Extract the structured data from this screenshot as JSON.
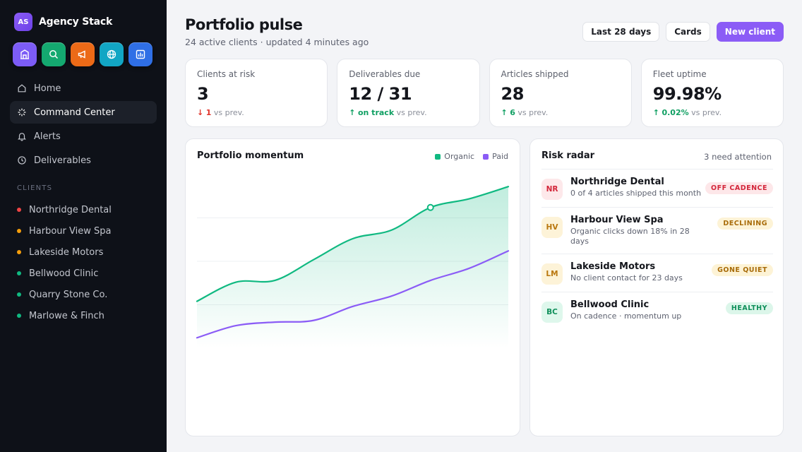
{
  "brand": {
    "initials": "AS",
    "name": "Agency Stack"
  },
  "apps": [
    {
      "icon": "building-icon",
      "color": "#7c5cf6"
    },
    {
      "icon": "search-icon",
      "color": "#14a970"
    },
    {
      "icon": "megaphone-icon",
      "color": "#ec6a17"
    },
    {
      "icon": "globe-icon",
      "color": "#12a6c4"
    },
    {
      "icon": "bar-chart-icon",
      "color": "#2f6fe6"
    }
  ],
  "nav": [
    {
      "label": "Home",
      "icon": "home-icon"
    },
    {
      "label": "Command Center",
      "icon": "sparkle-icon",
      "active": true
    },
    {
      "label": "Alerts",
      "icon": "bell-icon"
    },
    {
      "label": "Deliverables",
      "icon": "clock-icon"
    }
  ],
  "clients_label": "CLIENTS",
  "clients": [
    {
      "name": "Northridge Dental",
      "color": "#ef4444"
    },
    {
      "name": "Harbour View Spa",
      "color": "#f59e0b"
    },
    {
      "name": "Lakeside Motors",
      "color": "#f59e0b"
    },
    {
      "name": "Bellwood Clinic",
      "color": "#10b981"
    },
    {
      "name": "Quarry Stone Co.",
      "color": "#10b981"
    },
    {
      "name": "Marlowe & Finch",
      "color": "#10b981"
    }
  ],
  "header": {
    "title": "Portfolio pulse",
    "subtitle": "24 active clients · updated 4 minutes ago",
    "range_button": "Last 28 days",
    "view_button": "Cards",
    "primary_button": "New client"
  },
  "stats": [
    {
      "label": "Clients at risk",
      "value": "3",
      "delta_arrow": "↓",
      "delta": "1",
      "delta_suffix": "vs prev.",
      "trend": "down"
    },
    {
      "label": "Deliverables due",
      "value": "12 / 31",
      "delta_arrow": "↑",
      "delta": "on track",
      "delta_suffix": "vs prev.",
      "trend": "up"
    },
    {
      "label": "Articles shipped",
      "value": "28",
      "delta_arrow": "↑",
      "delta": "6",
      "delta_suffix": "vs prev.",
      "trend": "up"
    },
    {
      "label": "Fleet uptime",
      "value": "99.98%",
      "delta_arrow": "↑",
      "delta": "0.02%",
      "delta_suffix": "vs prev.",
      "trend": "up"
    }
  ],
  "momentum": {
    "title": "Portfolio momentum",
    "legend": [
      {
        "name": "Organic",
        "color": "#10b981"
      },
      {
        "name": "Paid",
        "color": "#8b5cf6"
      }
    ]
  },
  "chart_data": {
    "type": "area",
    "title": "Portfolio momentum",
    "xlabel": "",
    "ylabel": "",
    "ylim": [
      0,
      100
    ],
    "grid": true,
    "legend_position": "top-right",
    "x": [
      0,
      1,
      2,
      3,
      4,
      5,
      6,
      7,
      8
    ],
    "series": [
      {
        "name": "Organic",
        "color": "#10b981",
        "values": [
          27,
          38,
          39,
          51,
          63,
          68,
          81,
          86,
          93
        ],
        "highlight_index": 6
      },
      {
        "name": "Paid",
        "color": "#8b5cf6",
        "values": [
          6,
          13,
          15,
          16,
          24,
          30,
          39,
          46,
          56
        ]
      }
    ]
  },
  "risk": {
    "title": "Risk radar",
    "meta": "3 need attention",
    "items": [
      {
        "initials": "NR",
        "name": "Northridge Dental",
        "desc": "0 of 4 articles shipped this month",
        "badge": "OFF CADENCE",
        "avatar_bg": "#fde8ea",
        "avatar_fg": "#d3263a",
        "badge_bg": "#fde7e9",
        "badge_fg": "#d3263a"
      },
      {
        "initials": "HV",
        "name": "Harbour View Spa",
        "desc": "Organic clicks down 18% in 28 days",
        "badge": "DECLINING",
        "avatar_bg": "#fdf3d8",
        "avatar_fg": "#b9770e",
        "badge_bg": "#fdf3d6",
        "badge_fg": "#a86b08"
      },
      {
        "initials": "LM",
        "name": "Lakeside Motors",
        "desc": "No client contact for 23 days",
        "badge": "GONE QUIET",
        "avatar_bg": "#fdf3d8",
        "avatar_fg": "#b9770e",
        "badge_bg": "#fdf3d6",
        "badge_fg": "#a86b08"
      },
      {
        "initials": "BC",
        "name": "Bellwood Clinic",
        "desc": "On cadence · momentum up",
        "badge": "HEALTHY",
        "avatar_bg": "#def7ec",
        "avatar_fg": "#0f8f5a",
        "badge_bg": "#dcf6ea",
        "badge_fg": "#0f8f5a"
      }
    ]
  }
}
